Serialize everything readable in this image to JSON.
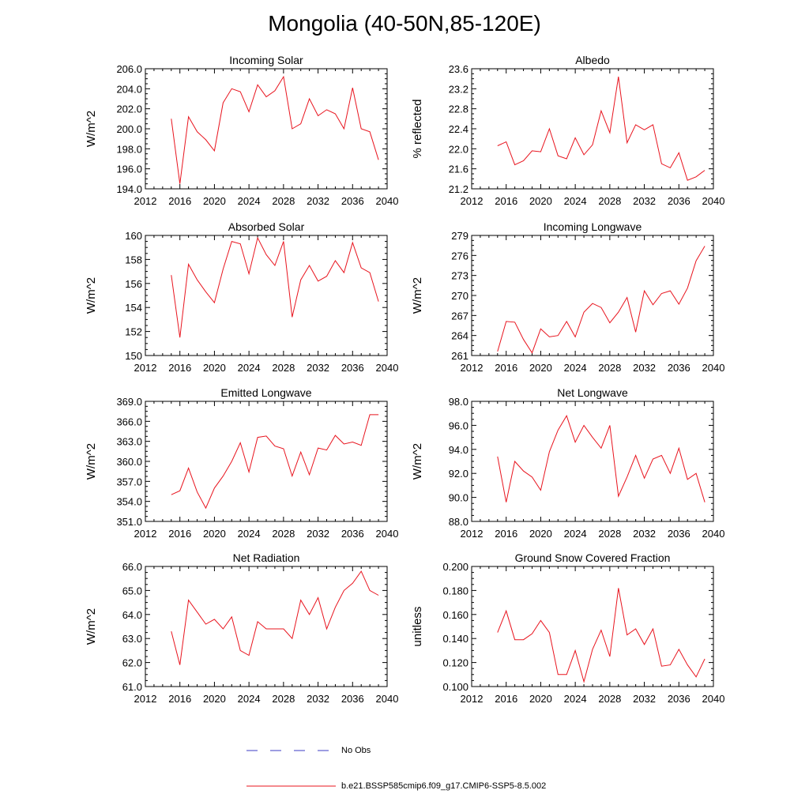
{
  "title": "Mongolia (40-50N,85-120E)",
  "legend": {
    "items": [
      {
        "label": "No Obs",
        "color": "#3b3bc4",
        "dash": true
      },
      {
        "label": "b.e21.BSSP585cmip6.f09_g17.CMIP6-SSP5-8.5.002",
        "color": "#e8141e",
        "dash": false
      }
    ]
  },
  "chart_data": [
    {
      "type": "line",
      "title": "Incoming Solar",
      "ylabel": "W/m^2",
      "xlim": [
        2012,
        2040
      ],
      "ylim": [
        194.0,
        206.0
      ],
      "xticks": [
        "2012",
        "2016",
        "2020",
        "2024",
        "2028",
        "2032",
        "2036",
        "2040"
      ],
      "yticks": [
        "194.0",
        "196.0",
        "198.0",
        "200.0",
        "202.0",
        "204.0",
        "206.0"
      ],
      "series": [
        {
          "color": "#e8141e",
          "x": [
            2015,
            2016,
            2017,
            2018,
            2019,
            2020,
            2021,
            2022,
            2023,
            2024,
            2025,
            2026,
            2027,
            2028,
            2029,
            2030,
            2031,
            2032,
            2033,
            2034,
            2035,
            2036,
            2037,
            2038,
            2039
          ],
          "y": [
            201.0,
            194.5,
            201.2,
            199.7,
            198.9,
            197.8,
            202.6,
            204.0,
            203.7,
            201.7,
            204.4,
            203.2,
            203.8,
            205.2,
            200.0,
            200.5,
            203.0,
            201.3,
            201.9,
            201.5,
            200.0,
            204.1,
            200.0,
            199.7,
            196.9
          ]
        }
      ]
    },
    {
      "type": "line",
      "title": "Albedo",
      "ylabel": "% reflected",
      "xlim": [
        2012,
        2040
      ],
      "ylim": [
        21.2,
        23.6
      ],
      "xticks": [
        "2012",
        "2016",
        "2020",
        "2024",
        "2028",
        "2032",
        "2036",
        "2040"
      ],
      "yticks": [
        "21.2",
        "21.6",
        "22.0",
        "22.4",
        "22.8",
        "23.2",
        "23.6"
      ],
      "series": [
        {
          "color": "#e8141e",
          "x": [
            2015,
            2016,
            2017,
            2018,
            2019,
            2020,
            2021,
            2022,
            2023,
            2024,
            2025,
            2026,
            2027,
            2028,
            2029,
            2030,
            2031,
            2032,
            2033,
            2034,
            2035,
            2036,
            2037,
            2038,
            2039
          ],
          "y": [
            22.06,
            22.14,
            21.68,
            21.76,
            21.96,
            21.94,
            22.4,
            21.86,
            21.8,
            22.22,
            21.88,
            22.08,
            22.76,
            22.32,
            23.44,
            22.12,
            22.48,
            22.38,
            22.48,
            21.7,
            21.62,
            21.92,
            21.37,
            21.44,
            21.57
          ]
        }
      ]
    },
    {
      "type": "line",
      "title": "Absorbed Solar",
      "ylabel": "W/m^2",
      "xlim": [
        2012,
        2040
      ],
      "ylim": [
        150,
        160
      ],
      "xticks": [
        "2012",
        "2016",
        "2020",
        "2024",
        "2028",
        "2032",
        "2036",
        "2040"
      ],
      "yticks": [
        "150",
        "152",
        "154",
        "156",
        "158",
        "160"
      ],
      "series": [
        {
          "color": "#e8141e",
          "x": [
            2015,
            2016,
            2017,
            2018,
            2019,
            2020,
            2021,
            2022,
            2023,
            2024,
            2025,
            2026,
            2027,
            2028,
            2029,
            2030,
            2031,
            2032,
            2033,
            2034,
            2035,
            2036,
            2037,
            2038,
            2039
          ],
          "y": [
            156.7,
            151.5,
            157.6,
            156.3,
            155.3,
            154.4,
            157.2,
            159.5,
            159.3,
            156.8,
            159.8,
            158.4,
            157.5,
            159.5,
            153.2,
            156.3,
            157.5,
            156.2,
            156.6,
            157.9,
            156.9,
            159.4,
            157.3,
            156.9,
            154.5
          ]
        }
      ]
    },
    {
      "type": "line",
      "title": "Incoming Longwave",
      "ylabel": "W/m^2",
      "xlim": [
        2012,
        2040
      ],
      "ylim": [
        261,
        279
      ],
      "xticks": [
        "2012",
        "2016",
        "2020",
        "2024",
        "2028",
        "2032",
        "2036",
        "2040"
      ],
      "yticks": [
        "261",
        "264",
        "267",
        "270",
        "273",
        "276",
        "279"
      ],
      "series": [
        {
          "color": "#e8141e",
          "x": [
            2015,
            2016,
            2017,
            2018,
            2019,
            2020,
            2021,
            2022,
            2023,
            2024,
            2025,
            2026,
            2027,
            2028,
            2029,
            2030,
            2031,
            2032,
            2033,
            2034,
            2035,
            2036,
            2037,
            2038,
            2039
          ],
          "y": [
            261.6,
            266.1,
            266.0,
            263.4,
            261.4,
            265.0,
            263.8,
            264.0,
            266.1,
            263.8,
            267.5,
            268.8,
            268.2,
            265.9,
            267.5,
            269.7,
            264.5,
            270.7,
            268.6,
            270.3,
            270.7,
            268.7,
            271.1,
            275.2,
            277.4
          ]
        }
      ]
    },
    {
      "type": "line",
      "title": "Emitted Longwave",
      "ylabel": "W/m^2",
      "xlim": [
        2012,
        2040
      ],
      "ylim": [
        351.0,
        369.0
      ],
      "xticks": [
        "2012",
        "2016",
        "2020",
        "2024",
        "2028",
        "2032",
        "2036",
        "2040"
      ],
      "yticks": [
        "351.0",
        "354.0",
        "357.0",
        "360.0",
        "363.0",
        "366.0",
        "369.0"
      ],
      "series": [
        {
          "color": "#e8141e",
          "x": [
            2015,
            2016,
            2017,
            2018,
            2019,
            2020,
            2021,
            2022,
            2023,
            2024,
            2025,
            2026,
            2027,
            2028,
            2029,
            2030,
            2031,
            2032,
            2033,
            2034,
            2035,
            2036,
            2037,
            2038,
            2039
          ],
          "y": [
            355.0,
            355.6,
            359.0,
            355.4,
            353.0,
            356.0,
            357.8,
            360.0,
            362.8,
            358.4,
            363.6,
            363.8,
            362.3,
            361.9,
            357.8,
            361.4,
            358.0,
            362.0,
            361.7,
            363.9,
            362.6,
            362.9,
            362.4,
            367.0,
            367.0
          ]
        }
      ]
    },
    {
      "type": "line",
      "title": "Net Longwave",
      "ylabel": "W/m^2",
      "xlim": [
        2012,
        2040
      ],
      "ylim": [
        88.0,
        98.0
      ],
      "xticks": [
        "2012",
        "2016",
        "2020",
        "2024",
        "2028",
        "2032",
        "2036",
        "2040"
      ],
      "yticks": [
        "88.0",
        "90.0",
        "92.0",
        "94.0",
        "96.0",
        "98.0"
      ],
      "series": [
        {
          "color": "#e8141e",
          "x": [
            2015,
            2016,
            2017,
            2018,
            2019,
            2020,
            2021,
            2022,
            2023,
            2024,
            2025,
            2026,
            2027,
            2028,
            2029,
            2030,
            2031,
            2032,
            2033,
            2034,
            2035,
            2036,
            2037,
            2038,
            2039
          ],
          "y": [
            93.4,
            89.6,
            93.0,
            92.2,
            91.7,
            90.6,
            93.8,
            95.6,
            96.8,
            94.6,
            96.0,
            95.0,
            94.1,
            96.0,
            90.1,
            91.7,
            93.5,
            91.6,
            93.2,
            93.5,
            92.0,
            94.1,
            91.5,
            92.0,
            89.6
          ]
        }
      ]
    },
    {
      "type": "line",
      "title": "Net Radiation",
      "ylabel": "W/m^2",
      "xlim": [
        2012,
        2040
      ],
      "ylim": [
        61.0,
        66.0
      ],
      "xticks": [
        "2012",
        "2016",
        "2020",
        "2024",
        "2028",
        "2032",
        "2036",
        "2040"
      ],
      "yticks": [
        "61.0",
        "62.0",
        "63.0",
        "64.0",
        "65.0",
        "66.0"
      ],
      "series": [
        {
          "color": "#e8141e",
          "x": [
            2015,
            2016,
            2017,
            2018,
            2019,
            2020,
            2021,
            2022,
            2023,
            2024,
            2025,
            2026,
            2027,
            2028,
            2029,
            2030,
            2031,
            2032,
            2033,
            2034,
            2035,
            2036,
            2037,
            2038,
            2039
          ],
          "y": [
            63.3,
            61.9,
            64.6,
            64.1,
            63.6,
            63.8,
            63.4,
            63.9,
            62.5,
            62.3,
            63.7,
            63.4,
            63.4,
            63.4,
            63.0,
            64.6,
            64.0,
            64.7,
            63.4,
            64.3,
            65.0,
            65.3,
            65.8,
            65.0,
            64.8
          ]
        }
      ]
    },
    {
      "type": "line",
      "title": "Ground Snow Covered Fraction",
      "ylabel": "unitless",
      "xlim": [
        2012,
        2040
      ],
      "ylim": [
        0.1,
        0.2
      ],
      "xticks": [
        "2012",
        "2016",
        "2020",
        "2024",
        "2028",
        "2032",
        "2036",
        "2040"
      ],
      "yticks": [
        "0.100",
        "0.120",
        "0.140",
        "0.160",
        "0.180",
        "0.200"
      ],
      "series": [
        {
          "color": "#e8141e",
          "x": [
            2015,
            2016,
            2017,
            2018,
            2019,
            2020,
            2021,
            2022,
            2023,
            2024,
            2025,
            2026,
            2027,
            2028,
            2029,
            2030,
            2031,
            2032,
            2033,
            2034,
            2035,
            2036,
            2037,
            2038,
            2039
          ],
          "y": [
            0.145,
            0.163,
            0.139,
            0.139,
            0.144,
            0.155,
            0.145,
            0.11,
            0.11,
            0.13,
            0.104,
            0.131,
            0.147,
            0.125,
            0.182,
            0.143,
            0.148,
            0.135,
            0.148,
            0.117,
            0.118,
            0.131,
            0.118,
            0.108,
            0.123
          ]
        }
      ]
    }
  ]
}
